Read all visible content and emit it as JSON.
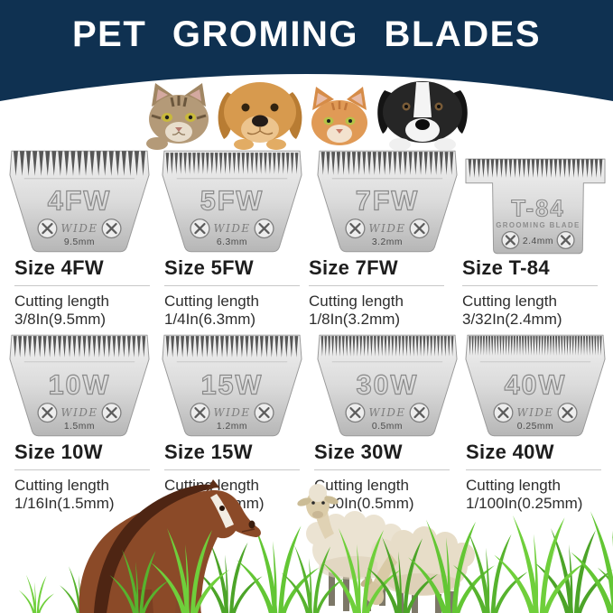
{
  "header": {
    "title": "PET GROMING BLADES"
  },
  "colors": {
    "header_bg": "#0f3151",
    "title_text": "#ffffff",
    "blade_silver": "#d9d9d9",
    "engraving": "#8a8a8a",
    "heading_text": "#1d1d1d",
    "grass_green": "#5cb32e",
    "horse_brown": "#8b4a28",
    "sheep_cream": "#ebe3d2"
  },
  "animals_top": [
    "tabby-cat",
    "golden-retriever-dog",
    "ginger-cat",
    "black-white-dog"
  ],
  "animals_bottom": [
    "brown-horse",
    "standing-sheep",
    "grazing-sheep",
    "grass"
  ],
  "blades": [
    {
      "model": "4FW",
      "badge": "WIDE",
      "thickness": "9.5mm",
      "size_title": "Size 4FW",
      "line1": "Cutting length",
      "line2": "3/8In(9.5mm)"
    },
    {
      "model": "5FW",
      "badge": "WIDE",
      "thickness": "6.3mm",
      "size_title": "Size 5FW",
      "line1": "Cutting length",
      "line2": "1/4In(6.3mm)"
    },
    {
      "model": "7FW",
      "badge": "WIDE",
      "thickness": "3.2mm",
      "size_title": "Size 7FW",
      "line1": "Cutting length",
      "line2": "1/8In(3.2mm)"
    },
    {
      "model": "T-84",
      "badge": "GROOMING BLADE",
      "thickness": "2.4mm",
      "size_title": "Size T-84",
      "line1": "Cutting length",
      "line2": "3/32In(2.4mm)"
    },
    {
      "model": "10W",
      "badge": "WIDE",
      "thickness": "1.5mm",
      "size_title": "Size 10W",
      "line1": "Cutting length",
      "line2": "1/16In(1.5mm)"
    },
    {
      "model": "15W",
      "badge": "WIDE",
      "thickness": "1.2mm",
      "size_title": "Size 15W",
      "line1": "Cutting length",
      "line2": "3/64In(1.2mm)"
    },
    {
      "model": "30W",
      "badge": "WIDE",
      "thickness": "0.5mm",
      "size_title": "Size 30W",
      "line1": "Cutting length",
      "line2": "1/50In(0.5mm)"
    },
    {
      "model": "40W",
      "badge": "WIDE",
      "thickness": "0.25mm",
      "size_title": "Size 40W",
      "line1": "Cutting length",
      "line2": "1/100In(0.25mm)"
    }
  ]
}
